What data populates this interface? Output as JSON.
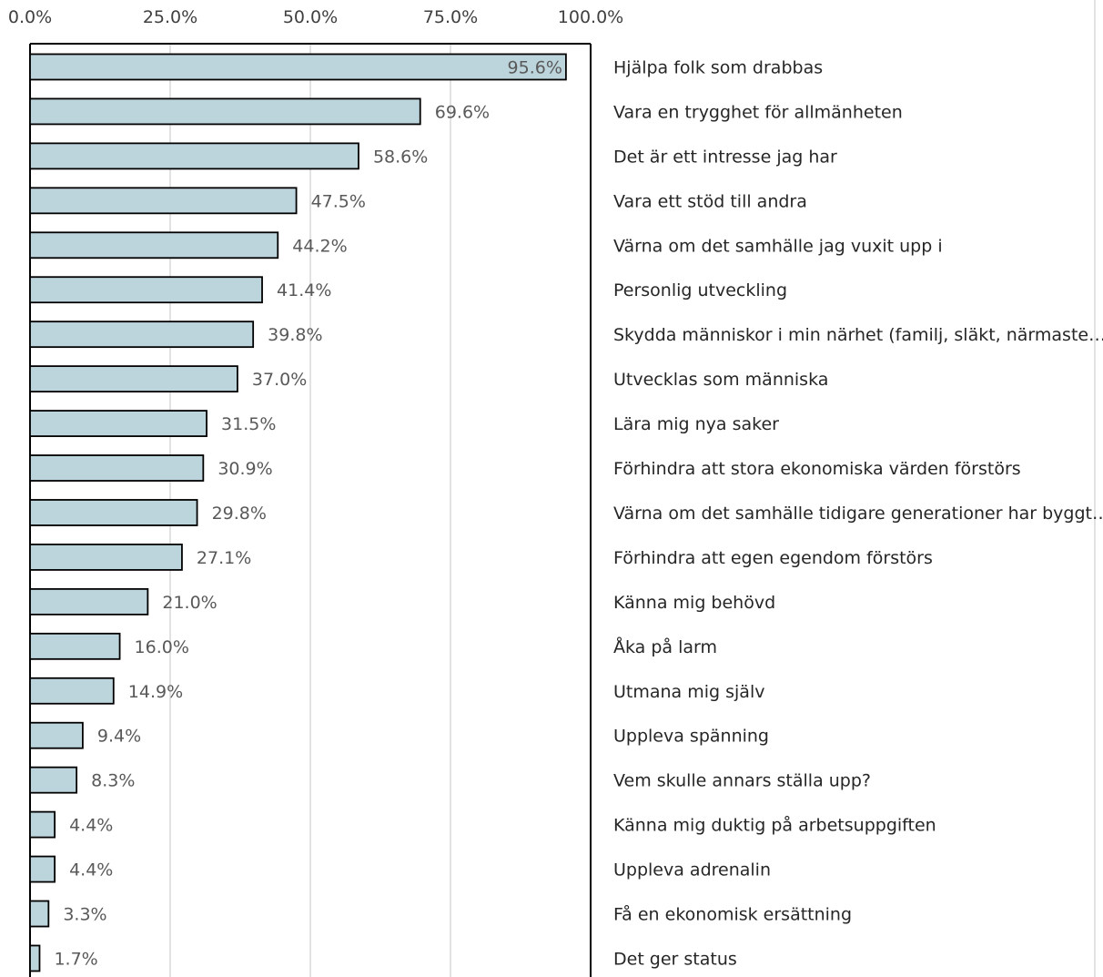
{
  "chart_data": {
    "type": "bar",
    "orientation": "horizontal",
    "title": "",
    "xlabel": "",
    "ylabel": "",
    "xlim": [
      0,
      100
    ],
    "x_ticks": [
      "0.0%",
      "25.0%",
      "50.0%",
      "75.0%",
      "100.0%"
    ],
    "x_axis_position": "top",
    "category_labels_position": "right",
    "grid": true,
    "legend": "none",
    "bar_color": "#bcd4dc",
    "bar_stroke_color": "#000000",
    "grid_color": "#d9d9d9",
    "categories": [
      "Hjälpa folk som drabbas",
      "Vara en trygghet för allmänheten",
      "Det är ett intresse jag har",
      "Vara ett stöd till andra",
      "Värna om det samhälle jag vuxit upp i",
      "Personlig utveckling",
      "Skydda människor i min närhet (familj, släkt, närmaste…",
      "Utvecklas som människa",
      "Lära mig nya saker",
      "Förhindra att stora ekonomiska värden förstörs",
      "Värna om det samhälle tidigare generationer har byggt…",
      "Förhindra att egen egendom förstörs",
      "Känna mig behövd",
      "Åka på larm",
      "Utmana mig själv",
      "Uppleva spänning",
      "Vem skulle annars ställa upp?",
      "Känna mig duktig  på arbetsuppgiften",
      "Uppleva adrenalin",
      "Få en ekonomisk ersättning",
      "Det ger status"
    ],
    "values": [
      95.6,
      69.6,
      58.6,
      47.5,
      44.2,
      41.4,
      39.8,
      37.0,
      31.5,
      30.9,
      29.8,
      27.1,
      21.0,
      16.0,
      14.9,
      9.4,
      8.3,
      4.4,
      4.4,
      3.3,
      1.7
    ],
    "value_labels": [
      "95.6%",
      "69.6%",
      "58.6%",
      "47.5%",
      "44.2%",
      "41.4%",
      "39.8%",
      "37.0%",
      "31.5%",
      "30.9%",
      "29.8%",
      "27.1%",
      "21.0%",
      "16.0%",
      "14.9%",
      "9.4%",
      "8.3%",
      "4.4%",
      "4.4%",
      "3.3%",
      "1.7%"
    ]
  }
}
